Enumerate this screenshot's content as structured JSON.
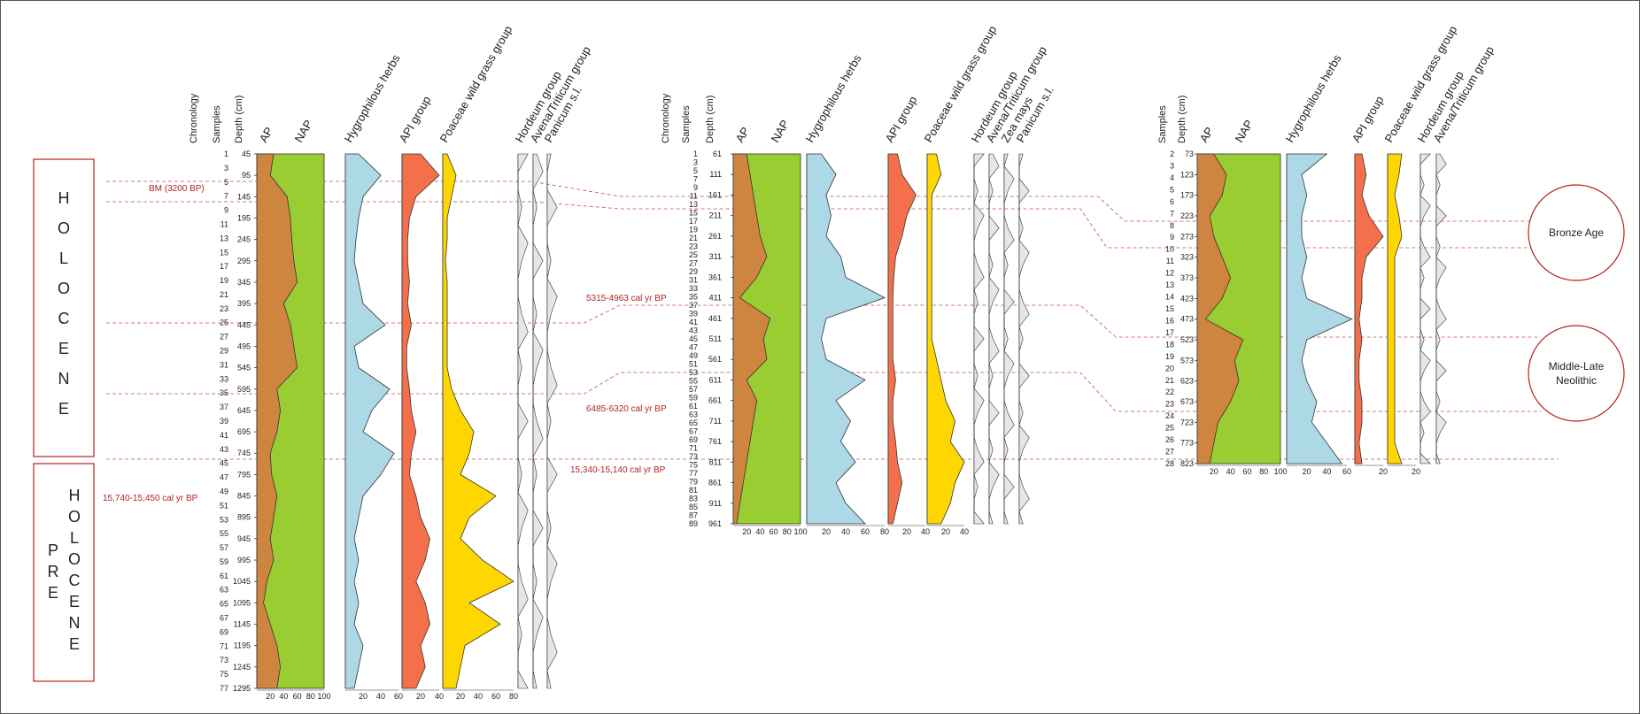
{
  "colors": {
    "ap": "#cd853f",
    "nap": "#9acd32",
    "hygro": "#add8e6",
    "api": "#f4704a",
    "poaceae": "#ffd700",
    "cereal": "#e6e6e6",
    "correlation": "#b22222",
    "frame": "#555555"
  },
  "header_labels": {
    "chronology": "Chronology",
    "samples": "Samples",
    "depth": "Depth (cm)",
    "ap": "AP",
    "nap": "NAP",
    "hygro": "Hygrophilous herbs",
    "api": "API group",
    "poaceae": "Poaceae wild grass group",
    "hordeum": "Hordeum group",
    "avena": "Avena/Triticum group",
    "zea": "Zea mays",
    "panicum": "Panicum s.l."
  },
  "epochs": {
    "holocene": "HOLOCENE",
    "preholocene_pre": "PRE",
    "preholocene_rest": "HOLOCENE"
  },
  "date_labels": {
    "bm": "BM (3200 BP)",
    "c1": "5315-4963 cal yr BP",
    "c2": "6485-6320 cal yr BP",
    "c3": "15,340-15,140 cal yr BP",
    "c4": "15,740-15,450 cal yr BP"
  },
  "periods": {
    "bronze": "Bronze Age",
    "neo_line1": "Middle-Late",
    "neo_line2": "Neolithic"
  },
  "chart_data": [
    {
      "type": "area",
      "core": "left",
      "depth_ticks": [
        45,
        95,
        145,
        195,
        245,
        295,
        345,
        395,
        445,
        495,
        545,
        595,
        645,
        695,
        745,
        795,
        845,
        895,
        945,
        995,
        1045,
        1095,
        1145,
        1195,
        1245,
        1295
      ],
      "sample_ticks": [
        1,
        3,
        5,
        7,
        9,
        11,
        13,
        15,
        17,
        19,
        21,
        23,
        25,
        27,
        29,
        31,
        33,
        35,
        37,
        39,
        41,
        43,
        45,
        47,
        49,
        51,
        53,
        55,
        57,
        59,
        61,
        63,
        65,
        67,
        69,
        71,
        73,
        75,
        77
      ],
      "depth": [
        45,
        95,
        145,
        195,
        245,
        295,
        345,
        395,
        445,
        495,
        545,
        595,
        645,
        695,
        745,
        795,
        845,
        895,
        945,
        995,
        1045,
        1095,
        1145,
        1195,
        1245,
        1295
      ],
      "series": [
        {
          "name": "AP",
          "values": [
            25,
            20,
            45,
            50,
            52,
            55,
            60,
            40,
            50,
            55,
            60,
            30,
            35,
            30,
            20,
            22,
            30,
            25,
            20,
            25,
            15,
            10,
            20,
            30,
            35,
            30
          ]
        },
        {
          "name": "Hygrophilous herbs",
          "values": [
            15,
            40,
            20,
            15,
            12,
            10,
            15,
            20,
            45,
            10,
            15,
            50,
            30,
            20,
            55,
            40,
            20,
            15,
            10,
            15,
            10,
            15,
            10,
            20,
            15,
            10
          ]
        },
        {
          "name": "API group",
          "values": [
            20,
            40,
            15,
            8,
            6,
            6,
            8,
            6,
            10,
            5,
            5,
            8,
            10,
            15,
            10,
            8,
            15,
            20,
            30,
            25,
            15,
            25,
            30,
            20,
            25,
            15
          ]
        },
        {
          "name": "Poaceae wild grass group",
          "values": [
            5,
            15,
            10,
            5,
            5,
            3,
            5,
            5,
            5,
            5,
            5,
            10,
            20,
            35,
            30,
            20,
            60,
            30,
            20,
            45,
            80,
            30,
            65,
            25,
            20,
            15
          ]
        }
      ],
      "axis_ticks": {
        "ap_nap": [
          20,
          40,
          60,
          80,
          100
        ],
        "hygro": [
          20,
          40,
          60
        ],
        "api": [
          20,
          40
        ],
        "poaceae": [
          20,
          40,
          60,
          80
        ]
      }
    },
    {
      "type": "area",
      "core": "middle",
      "depth_ticks": [
        61,
        111,
        161,
        211,
        261,
        311,
        361,
        411,
        461,
        511,
        561,
        611,
        661,
        711,
        761,
        811,
        861,
        911,
        961
      ],
      "sample_ticks": [
        1,
        3,
        5,
        7,
        9,
        11,
        13,
        15,
        17,
        19,
        21,
        23,
        25,
        27,
        29,
        31,
        33,
        35,
        37,
        39,
        41,
        43,
        45,
        47,
        49,
        51,
        53,
        55,
        57,
        59,
        61,
        63,
        65,
        67,
        69,
        71,
        73,
        75,
        77,
        79,
        81,
        83,
        85,
        87,
        89
      ],
      "depth": [
        61,
        111,
        161,
        211,
        261,
        311,
        361,
        411,
        461,
        511,
        561,
        611,
        661,
        711,
        761,
        811,
        861,
        911,
        961
      ],
      "series": [
        {
          "name": "AP",
          "values": [
            20,
            25,
            30,
            35,
            40,
            50,
            35,
            10,
            55,
            45,
            50,
            20,
            35,
            30,
            25,
            20,
            15,
            10,
            5
          ]
        },
        {
          "name": "Hygrophilous herbs",
          "values": [
            15,
            30,
            20,
            25,
            20,
            35,
            40,
            80,
            20,
            15,
            20,
            60,
            30,
            45,
            35,
            50,
            30,
            40,
            60
          ]
        },
        {
          "name": "API group",
          "values": [
            10,
            15,
            30,
            20,
            15,
            8,
            6,
            5,
            5,
            5,
            5,
            8,
            5,
            5,
            8,
            10,
            15,
            10,
            5
          ]
        },
        {
          "name": "Poaceae wild grass group",
          "values": [
            10,
            15,
            5,
            5,
            5,
            5,
            5,
            5,
            5,
            5,
            10,
            15,
            20,
            30,
            25,
            40,
            30,
            25,
            15
          ]
        }
      ],
      "axis_ticks": {
        "ap_nap": [
          20,
          40,
          60,
          80,
          100
        ],
        "hygro": [
          20,
          40,
          60,
          80
        ],
        "api": [
          20,
          40
        ],
        "poaceae": [
          20,
          40
        ]
      }
    },
    {
      "type": "area",
      "core": "right",
      "depth_ticks": [
        73,
        123,
        173,
        223,
        273,
        323,
        373,
        423,
        473,
        523,
        573,
        623,
        673,
        723,
        773,
        823
      ],
      "sample_ticks": [
        2,
        3,
        4,
        5,
        6,
        7,
        8,
        9,
        10,
        11,
        12,
        13,
        14,
        15,
        16,
        17,
        18,
        19,
        20,
        21,
        22,
        23,
        24,
        25,
        26,
        27,
        28
      ],
      "depth": [
        73,
        123,
        173,
        223,
        273,
        323,
        373,
        423,
        473,
        523,
        573,
        623,
        673,
        723,
        773,
        823
      ],
      "series": [
        {
          "name": "AP",
          "values": [
            20,
            35,
            30,
            15,
            20,
            30,
            40,
            30,
            10,
            55,
            45,
            50,
            40,
            25,
            20,
            15
          ]
        },
        {
          "name": "Hygrophilous herbs",
          "values": [
            40,
            15,
            20,
            15,
            15,
            20,
            15,
            20,
            65,
            20,
            15,
            20,
            30,
            25,
            40,
            55
          ]
        },
        {
          "name": "API group",
          "values": [
            5,
            8,
            5,
            10,
            20,
            8,
            5,
            5,
            3,
            5,
            3,
            3,
            5,
            5,
            3,
            5
          ]
        },
        {
          "name": "Poaceae wild grass group",
          "values": [
            10,
            8,
            5,
            8,
            10,
            5,
            5,
            5,
            5,
            5,
            5,
            5,
            5,
            5,
            5,
            10
          ]
        }
      ],
      "axis_ticks": {
        "ap_nap": [
          20,
          40,
          60,
          80,
          100
        ],
        "hygro": [
          20,
          40,
          60
        ],
        "api": [
          20
        ],
        "poaceae": [
          20
        ]
      }
    }
  ]
}
